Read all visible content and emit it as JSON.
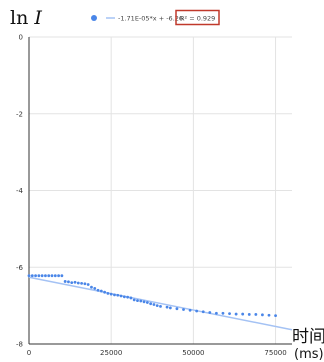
{
  "chart_data": {
    "type": "scatter",
    "ylabel_prefix": "ln ",
    "ylabel_var": "I",
    "xlabel_line1": "时间",
    "xlabel_line2": "(ms)",
    "legend": {
      "marker_color": "#4a86e8",
      "trendline_color": "#a4c2f4",
      "equation": "-1.71E-05*x + -6.26",
      "r2": "R² = 0.929",
      "r2_box_color": "#c0392b"
    },
    "xlim": [
      0,
      80000
    ],
    "ylim": [
      -8,
      0
    ],
    "x_ticks": [
      0,
      25000,
      50000,
      75000
    ],
    "x_tick_labels": [
      "0",
      "25000",
      "50000",
      "75000"
    ],
    "y_ticks": [
      0,
      -2,
      -4,
      -6,
      -8
    ],
    "y_tick_labels": [
      "0",
      "-2",
      "-4",
      "-6",
      "-8"
    ],
    "grid": true,
    "point_color": "#4a86e8",
    "trendline": {
      "slope": -1.71e-05,
      "intercept": -6.26
    },
    "x": [
      0,
      1000,
      2000,
      3000,
      4000,
      5000,
      6000,
      7000,
      8000,
      9000,
      10000,
      11000,
      12000,
      13000,
      14000,
      15000,
      16000,
      17000,
      18000,
      19000,
      20000,
      21000,
      22000,
      23000,
      24000,
      25000,
      26000,
      27000,
      28000,
      29000,
      30000,
      31000,
      32000,
      33000,
      34000,
      35000,
      36000,
      37000,
      38000,
      39000,
      40000,
      42000,
      43000,
      45000,
      47000,
      49000,
      51000,
      53000,
      55000,
      57000,
      59000,
      61000,
      63000,
      65000,
      67000,
      69000,
      71000,
      73000,
      75000
    ],
    "values": [
      -6.22,
      -6.22,
      -6.22,
      -6.22,
      -6.22,
      -6.22,
      -6.22,
      -6.22,
      -6.22,
      -6.22,
      -6.22,
      -6.37,
      -6.38,
      -6.4,
      -6.39,
      -6.41,
      -6.42,
      -6.43,
      -6.45,
      -6.52,
      -6.55,
      -6.6,
      -6.62,
      -6.65,
      -6.68,
      -6.7,
      -6.72,
      -6.73,
      -6.75,
      -6.77,
      -6.78,
      -6.8,
      -6.85,
      -6.87,
      -6.88,
      -6.9,
      -6.92,
      -6.95,
      -6.97,
      -7.0,
      -7.02,
      -7.04,
      -7.06,
      -7.08,
      -7.1,
      -7.12,
      -7.14,
      -7.16,
      -7.18,
      -7.2,
      -7.2,
      -7.21,
      -7.22,
      -7.22,
      -7.23,
      -7.23,
      -7.24,
      -7.25,
      -7.26
    ]
  }
}
